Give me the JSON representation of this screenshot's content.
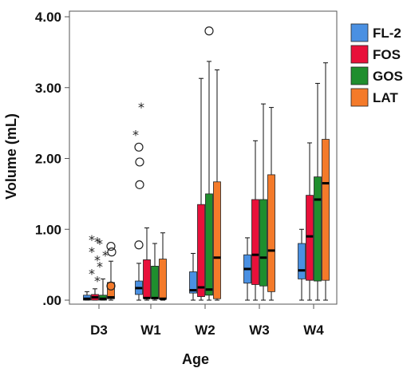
{
  "chart_data": {
    "type": "boxplot",
    "xlabel": "Age",
    "ylabel": "Volume (mL)",
    "ylim": [
      0,
      4.0
    ],
    "y_ticks": [
      0,
      1,
      2,
      3,
      4
    ],
    "y_tick_labels": [
      ".00",
      "1.00",
      "2.00",
      "3.00",
      "4.00"
    ],
    "categories": [
      "D3",
      "W1",
      "W2",
      "W3",
      "W4"
    ],
    "legend_position": "top-right",
    "series": [
      {
        "name": "FL-2",
        "color": "#4a90e2",
        "boxes": [
          {
            "min": 0.0,
            "q1": 0.0,
            "median": 0.02,
            "q3": 0.07,
            "max": 0.12,
            "outliers": [],
            "extremes": []
          },
          {
            "min": 0.0,
            "q1": 0.08,
            "median": 0.17,
            "q3": 0.27,
            "max": 0.52,
            "outliers": [
              0.78,
              1.95,
              2.16,
              1.63
            ],
            "extremes": [
              2.36,
              2.75
            ]
          },
          {
            "min": 0.0,
            "q1": 0.1,
            "median": 0.14,
            "q3": 0.4,
            "max": 0.66,
            "outliers": [],
            "extremes": []
          },
          {
            "min": 0.0,
            "q1": 0.24,
            "median": 0.44,
            "q3": 0.64,
            "max": 0.88,
            "outliers": [],
            "extremes": []
          },
          {
            "min": 0.0,
            "q1": 0.3,
            "median": 0.42,
            "q3": 0.8,
            "max": 1.0,
            "outliers": [],
            "extremes": []
          }
        ]
      },
      {
        "name": "FOS",
        "color": "#e8103a",
        "boxes": [
          {
            "min": 0.0,
            "q1": 0.0,
            "median": 0.04,
            "q3": 0.08,
            "max": 0.16,
            "outliers": [],
            "extremes": [
              0.88,
              0.85,
              0.71,
              0.59,
              0.4,
              0.3
            ]
          },
          {
            "min": 0.0,
            "q1": 0.03,
            "median": 0.03,
            "q3": 0.57,
            "max": 1.02,
            "outliers": [],
            "extremes": []
          },
          {
            "min": 0.0,
            "q1": 0.05,
            "median": 0.18,
            "q3": 1.35,
            "max": 3.13,
            "outliers": [],
            "extremes": []
          },
          {
            "min": 0.0,
            "q1": 0.22,
            "median": 0.64,
            "q3": 1.42,
            "max": 2.25,
            "outliers": [],
            "extremes": []
          },
          {
            "min": 0.0,
            "q1": 0.28,
            "median": 0.9,
            "q3": 1.48,
            "max": 2.22,
            "outliers": [],
            "extremes": []
          }
        ]
      },
      {
        "name": "GOS",
        "color": "#1f8e2e",
        "boxes": [
          {
            "min": 0.0,
            "q1": 0.0,
            "median": 0.02,
            "q3": 0.07,
            "max": 0.3,
            "outliers": [],
            "extremes": [
              0.82,
              0.66,
              0.5
            ]
          },
          {
            "min": 0.0,
            "q1": 0.02,
            "median": 0.03,
            "q3": 0.48,
            "max": 0.8,
            "outliers": [],
            "extremes": []
          },
          {
            "min": 0.0,
            "q1": 0.07,
            "median": 0.15,
            "q3": 1.5,
            "max": 3.37,
            "outliers": [
              3.8
            ],
            "extremes": []
          },
          {
            "min": 0.0,
            "q1": 0.2,
            "median": 0.6,
            "q3": 1.42,
            "max": 2.77,
            "outliers": [],
            "extremes": []
          },
          {
            "min": 0.0,
            "q1": 0.27,
            "median": 1.42,
            "q3": 1.74,
            "max": 3.06,
            "outliers": [],
            "extremes": []
          }
        ]
      },
      {
        "name": "LAT",
        "color": "#f47a2a",
        "boxes": [
          {
            "min": 0.0,
            "q1": 0.02,
            "median": 0.04,
            "q3": 0.25,
            "max": 0.55,
            "outliers": [
              0.76,
              0.68,
              0.2
            ],
            "extremes": []
          },
          {
            "min": 0.0,
            "q1": 0.02,
            "median": 0.02,
            "q3": 0.58,
            "max": 0.95,
            "outliers": [],
            "extremes": []
          },
          {
            "min": 0.0,
            "q1": 0.02,
            "median": 0.6,
            "q3": 1.67,
            "max": 3.25,
            "outliers": [],
            "extremes": []
          },
          {
            "min": 0.0,
            "q1": 0.12,
            "median": 0.7,
            "q3": 1.77,
            "max": 2.72,
            "outliers": [],
            "extremes": []
          },
          {
            "min": 0.0,
            "q1": 0.28,
            "median": 1.65,
            "q3": 2.27,
            "max": 3.35,
            "outliers": [],
            "extremes": []
          }
        ]
      }
    ]
  }
}
